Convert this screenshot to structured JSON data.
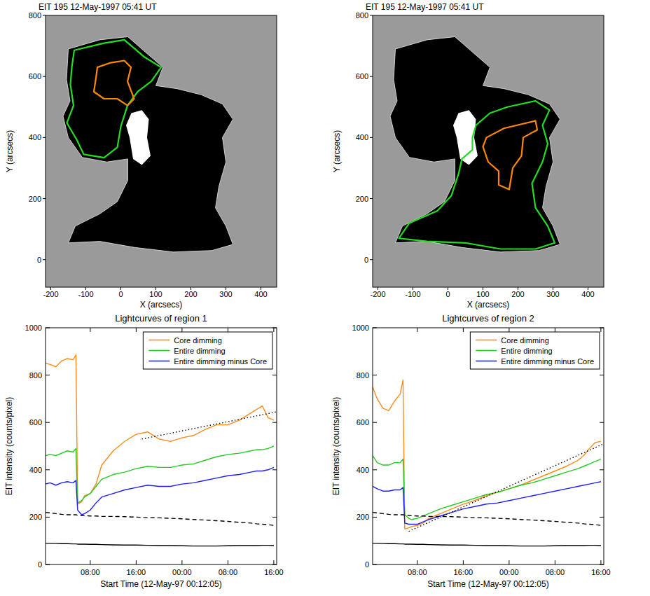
{
  "chart_data": [
    {
      "type": "image",
      "title": "EIT 195 12-May-1997 05:41 UT",
      "x_label": "X (arcsecs)",
      "y_label": "Y (arcsecs)",
      "xlim": [
        -215,
        445
      ],
      "ylim": [
        -90,
        800
      ],
      "xticks": [
        -200,
        -100,
        0,
        100,
        200,
        300,
        400
      ],
      "yticks": [
        0,
        200,
        400,
        600,
        800
      ],
      "dimming": [
        [
          -150,
          690
        ],
        [
          -60,
          720
        ],
        [
          20,
          730
        ],
        [
          80,
          670
        ],
        [
          120,
          630
        ],
        [
          100,
          570
        ],
        [
          160,
          560
        ],
        [
          230,
          540
        ],
        [
          290,
          510
        ],
        [
          320,
          460
        ],
        [
          290,
          400
        ],
        [
          300,
          320
        ],
        [
          280,
          240
        ],
        [
          270,
          170
        ],
        [
          300,
          110
        ],
        [
          320,
          50
        ],
        [
          260,
          30
        ],
        [
          150,
          25
        ],
        [
          40,
          40
        ],
        [
          -60,
          60
        ],
        [
          -150,
          55
        ],
        [
          -130,
          110
        ],
        [
          -60,
          150
        ],
        [
          -10,
          190
        ],
        [
          20,
          260
        ],
        [
          20,
          330
        ],
        [
          -40,
          320
        ],
        [
          -110,
          335
        ],
        [
          -150,
          400
        ],
        [
          -165,
          470
        ],
        [
          -145,
          520
        ],
        [
          -155,
          590
        ]
      ],
      "flare": [
        [
          30,
          480
        ],
        [
          60,
          490
        ],
        [
          80,
          460
        ],
        [
          75,
          400
        ],
        [
          85,
          340
        ],
        [
          60,
          310
        ],
        [
          35,
          330
        ],
        [
          25,
          400
        ],
        [
          15,
          440
        ]
      ],
      "contours": [
        {
          "color": "#22dd22",
          "points": [
            [
              -133,
              686
            ],
            [
              -48,
              709
            ],
            [
              10,
              720
            ],
            [
              67,
              664
            ],
            [
              115,
              630
            ],
            [
              87,
              584
            ],
            [
              48,
              550
            ],
            [
              19,
              505
            ],
            [
              0,
              436
            ],
            [
              -10,
              368
            ],
            [
              -48,
              334
            ],
            [
              -106,
              345
            ],
            [
              -125,
              391
            ],
            [
              -154,
              448
            ],
            [
              -135,
              505
            ],
            [
              -144,
              573
            ],
            [
              -140,
              630
            ]
          ]
        },
        {
          "color": "#ff8800",
          "points": [
            [
              -67,
              630
            ],
            [
              -29,
              645
            ],
            [
              10,
              652
            ],
            [
              29,
              630
            ],
            [
              19,
              584
            ],
            [
              38,
              527
            ],
            [
              19,
              505
            ],
            [
              -10,
              527
            ],
            [
              -48,
              527
            ],
            [
              -77,
              550
            ],
            [
              -71,
              595
            ]
          ]
        }
      ]
    },
    {
      "type": "image",
      "title": "EIT 195 12-May-1997 05:41 UT",
      "x_label": "X (arcsecs)",
      "y_label": "Y (arcsecs)",
      "xlim": [
        -215,
        445
      ],
      "ylim": [
        -90,
        800
      ],
      "xticks": [
        -200,
        -100,
        0,
        100,
        200,
        300,
        400
      ],
      "yticks": [
        0,
        200,
        400,
        600,
        800
      ],
      "dimming": [
        [
          -150,
          690
        ],
        [
          -60,
          720
        ],
        [
          20,
          730
        ],
        [
          80,
          670
        ],
        [
          120,
          630
        ],
        [
          100,
          570
        ],
        [
          160,
          560
        ],
        [
          230,
          540
        ],
        [
          290,
          510
        ],
        [
          320,
          460
        ],
        [
          290,
          400
        ],
        [
          300,
          320
        ],
        [
          280,
          240
        ],
        [
          270,
          170
        ],
        [
          300,
          110
        ],
        [
          320,
          50
        ],
        [
          260,
          30
        ],
        [
          150,
          25
        ],
        [
          40,
          40
        ],
        [
          -60,
          60
        ],
        [
          -150,
          55
        ],
        [
          -130,
          110
        ],
        [
          -60,
          150
        ],
        [
          -10,
          190
        ],
        [
          20,
          260
        ],
        [
          20,
          330
        ],
        [
          -40,
          320
        ],
        [
          -110,
          335
        ],
        [
          -150,
          400
        ],
        [
          -165,
          470
        ],
        [
          -145,
          520
        ],
        [
          -155,
          590
        ]
      ],
      "flare": [
        [
          30,
          480
        ],
        [
          60,
          490
        ],
        [
          80,
          460
        ],
        [
          75,
          400
        ],
        [
          85,
          340
        ],
        [
          60,
          310
        ],
        [
          35,
          330
        ],
        [
          25,
          400
        ],
        [
          15,
          440
        ]
      ],
      "contours": [
        {
          "color": "#22dd22",
          "points": [
            [
              80,
              440
            ],
            [
              120,
              480
            ],
            [
              170,
              500
            ],
            [
              250,
              520
            ],
            [
              290,
              490
            ],
            [
              270,
              440
            ],
            [
              285,
              380
            ],
            [
              270,
              320
            ],
            [
              240,
              250
            ],
            [
              250,
              170
            ],
            [
              285,
              110
            ],
            [
              305,
              55
            ],
            [
              250,
              35
            ],
            [
              150,
              35
            ],
            [
              50,
              55
            ],
            [
              -60,
              60
            ],
            [
              -140,
              70
            ],
            [
              -110,
              120
            ],
            [
              -30,
              160
            ],
            [
              10,
              210
            ],
            [
              30,
              280
            ],
            [
              40,
              330
            ],
            [
              70,
              360
            ],
            [
              70,
              400
            ]
          ]
        },
        {
          "color": "#ff8800",
          "points": [
            [
              110,
              400
            ],
            [
              160,
              430
            ],
            [
              250,
              455
            ],
            [
              255,
              425
            ],
            [
              215,
              400
            ],
            [
              210,
              340
            ],
            [
              185,
              300
            ],
            [
              175,
              230
            ],
            [
              145,
              245
            ],
            [
              145,
              290
            ],
            [
              115,
              320
            ],
            [
              100,
              370
            ]
          ]
        }
      ]
    },
    {
      "type": "line",
      "title": "Lightcurves of region 1",
      "x_label": "Start Time (12-May-97 00:12:05)",
      "y_label": "EIT intensity (counts/pixel)",
      "xlim": [
        0.2,
        40.5
      ],
      "xticks": [
        {
          "value": 8,
          "label": "08:00"
        },
        {
          "value": 16,
          "label": "16:00"
        },
        {
          "value": 24,
          "label": "00:00"
        },
        {
          "value": 32,
          "label": "08:00"
        },
        {
          "value": 40,
          "label": "16:00"
        }
      ],
      "ylim": [
        0,
        1000
      ],
      "yticks": [
        0,
        200,
        400,
        600,
        800,
        1000
      ],
      "legend": "upper right",
      "x": [
        0.2,
        1,
        2,
        3,
        4,
        5,
        5.5,
        5.8,
        6.5,
        7,
        8,
        9,
        10,
        12,
        14,
        16,
        18,
        20,
        22,
        24,
        26,
        28,
        30,
        32,
        34,
        36,
        37,
        38,
        39,
        40
      ],
      "series": [
        {
          "name": "Core dimming",
          "color": "#ff8c1a",
          "values": [
            850,
            845,
            835,
            860,
            870,
            865,
            885,
            255,
            265,
            290,
            300,
            340,
            420,
            480,
            520,
            550,
            560,
            530,
            520,
            535,
            545,
            570,
            590,
            590,
            610,
            640,
            655,
            670,
            620,
            610
          ]
        },
        {
          "name": "Entire dimming",
          "color": "#22cc22",
          "values": [
            460,
            465,
            460,
            470,
            480,
            475,
            490,
            260,
            270,
            285,
            300,
            330,
            360,
            380,
            390,
            405,
            415,
            410,
            410,
            420,
            425,
            440,
            455,
            465,
            470,
            480,
            485,
            485,
            490,
            500
          ]
        },
        {
          "name": "Entire dimming minus Core",
          "color": "#1f1fff",
          "values": [
            340,
            345,
            335,
            345,
            350,
            345,
            355,
            230,
            210,
            215,
            230,
            260,
            285,
            300,
            315,
            325,
            335,
            330,
            330,
            340,
            345,
            355,
            365,
            375,
            380,
            390,
            395,
            395,
            400,
            410
          ]
        },
        {
          "color": "#000000",
          "line_style": "dashed",
          "values": [
            220,
            218,
            215,
            212,
            210,
            210,
            210,
            208,
            207,
            206,
            205,
            205,
            203,
            203,
            202,
            200,
            198,
            197,
            195,
            193,
            190,
            188,
            185,
            182,
            178,
            175,
            172,
            170,
            168,
            165
          ]
        },
        {
          "color": "#000000",
          "line_style": "solid",
          "values": [
            90,
            90,
            89,
            88,
            88,
            87,
            87,
            86,
            86,
            86,
            85,
            85,
            84,
            83,
            82,
            82,
            81,
            80,
            80,
            79,
            78,
            78,
            78,
            79,
            80,
            80,
            80,
            81,
            81,
            80
          ]
        },
        {
          "color": "#000000",
          "line_style": "dotted",
          "x": [
            17,
            40.5
          ],
          "values": [
            530,
            645
          ]
        }
      ]
    },
    {
      "type": "line",
      "title": "Lightcurves of region 2",
      "x_label": "Start Time (12-May-97 00:12:05)",
      "y_label": "EIT intensity (counts/pixel)",
      "xlim": [
        0.2,
        40.5
      ],
      "xticks": [
        {
          "value": 8,
          "label": "08:00"
        },
        {
          "value": 16,
          "label": "16:00"
        },
        {
          "value": 24,
          "label": "00:00"
        },
        {
          "value": 32,
          "label": "08:00"
        },
        {
          "value": 40,
          "label": "16:00"
        }
      ],
      "ylim": [
        0,
        1000
      ],
      "yticks": [
        0,
        200,
        400,
        600,
        800,
        1000
      ],
      "legend": "upper right",
      "x": [
        0.2,
        1,
        2,
        3,
        4,
        5,
        5.5,
        5.8,
        6.5,
        7,
        8,
        9,
        10,
        12,
        14,
        16,
        18,
        20,
        22,
        24,
        26,
        28,
        30,
        32,
        34,
        36,
        37,
        38,
        39,
        40
      ],
      "series": [
        {
          "name": "Core dimming",
          "color": "#ff8c1a",
          "values": [
            750,
            700,
            660,
            650,
            690,
            720,
            780,
            150,
            155,
            160,
            165,
            175,
            195,
            215,
            235,
            255,
            270,
            290,
            305,
            320,
            335,
            355,
            375,
            395,
            415,
            440,
            460,
            490,
            515,
            520
          ]
        },
        {
          "name": "Entire dimming",
          "color": "#22cc22",
          "values": [
            460,
            430,
            420,
            420,
            430,
            430,
            445,
            210,
            195,
            190,
            195,
            205,
            215,
            235,
            250,
            265,
            280,
            295,
            305,
            320,
            335,
            345,
            360,
            375,
            390,
            405,
            415,
            425,
            435,
            445
          ]
        },
        {
          "name": "Entire dimming minus Core",
          "color": "#1f1fff",
          "values": [
            330,
            320,
            310,
            310,
            315,
            315,
            325,
            175,
            170,
            170,
            170,
            180,
            190,
            205,
            220,
            235,
            245,
            255,
            260,
            270,
            280,
            290,
            300,
            310,
            320,
            330,
            335,
            340,
            345,
            350
          ]
        },
        {
          "color": "#000000",
          "line_style": "dashed",
          "values": [
            220,
            218,
            215,
            212,
            210,
            210,
            210,
            208,
            207,
            206,
            205,
            205,
            203,
            203,
            202,
            200,
            198,
            197,
            195,
            193,
            190,
            188,
            185,
            182,
            178,
            175,
            172,
            170,
            168,
            165
          ]
        },
        {
          "color": "#000000",
          "line_style": "solid",
          "values": [
            90,
            90,
            89,
            88,
            88,
            87,
            87,
            86,
            86,
            86,
            85,
            85,
            84,
            83,
            82,
            82,
            81,
            80,
            80,
            79,
            78,
            78,
            78,
            79,
            80,
            80,
            80,
            81,
            81,
            80
          ]
        },
        {
          "color": "#000000",
          "line_style": "dotted",
          "x": [
            6.5,
            40.5
          ],
          "values": [
            140,
            510
          ]
        }
      ]
    }
  ]
}
